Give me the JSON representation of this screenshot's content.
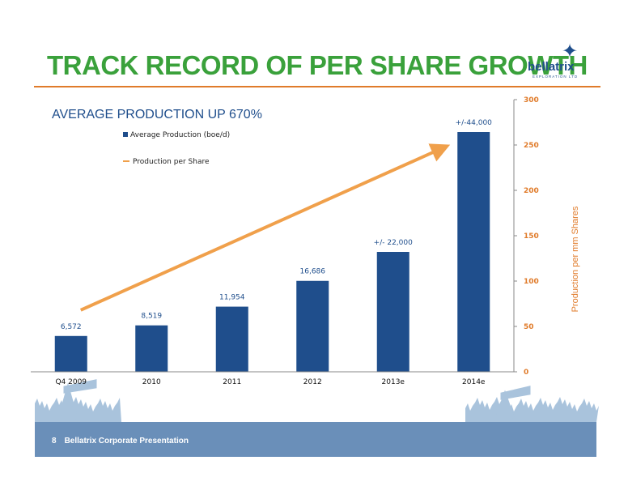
{
  "header": {
    "title": "TRACK RECORD OF PER SHARE GROWTH",
    "logo_name": "bellatrix",
    "logo_sub": "EXPLORATION LTD",
    "subtitle": "AVERAGE PRODUCTION UP 670%"
  },
  "footer": {
    "page_number": "8",
    "text": "Bellatrix Corporate Presentation"
  },
  "colors": {
    "title": "#3aa13b",
    "rule": "#e07b2a",
    "bar": "#1f4e8c",
    "line": "#f0a04b",
    "axis_right": "#e07b2a",
    "subtitle": "#1f4e8c",
    "footer": "#6a8fb9",
    "logo": "#1f4e8c",
    "silhouette": "#a9c3dc"
  },
  "chart_data": {
    "type": "bar",
    "categories": [
      "Q4 2009",
      "2010",
      "2011",
      "2012",
      "2013e",
      "2014e"
    ],
    "series": [
      {
        "name": "Average Production (boe/d)",
        "values": [
          6572,
          8519,
          11954,
          16686,
          22000,
          44000
        ],
        "data_labels": [
          "6,572",
          "8,519",
          "11,954",
          "16,686",
          "+/- 22,000",
          "+/-44,000"
        ]
      },
      {
        "name": "Production per Share",
        "type": "line",
        "values": [
          68,
          null,
          null,
          null,
          null,
          246
        ]
      }
    ],
    "y2label": "Production per mm Shares",
    "y2lim": [
      0,
      300
    ],
    "y2ticks": [
      "0",
      "50",
      "100",
      "150",
      "200",
      "250",
      "300"
    ],
    "legend": "top-left",
    "grid": false
  }
}
